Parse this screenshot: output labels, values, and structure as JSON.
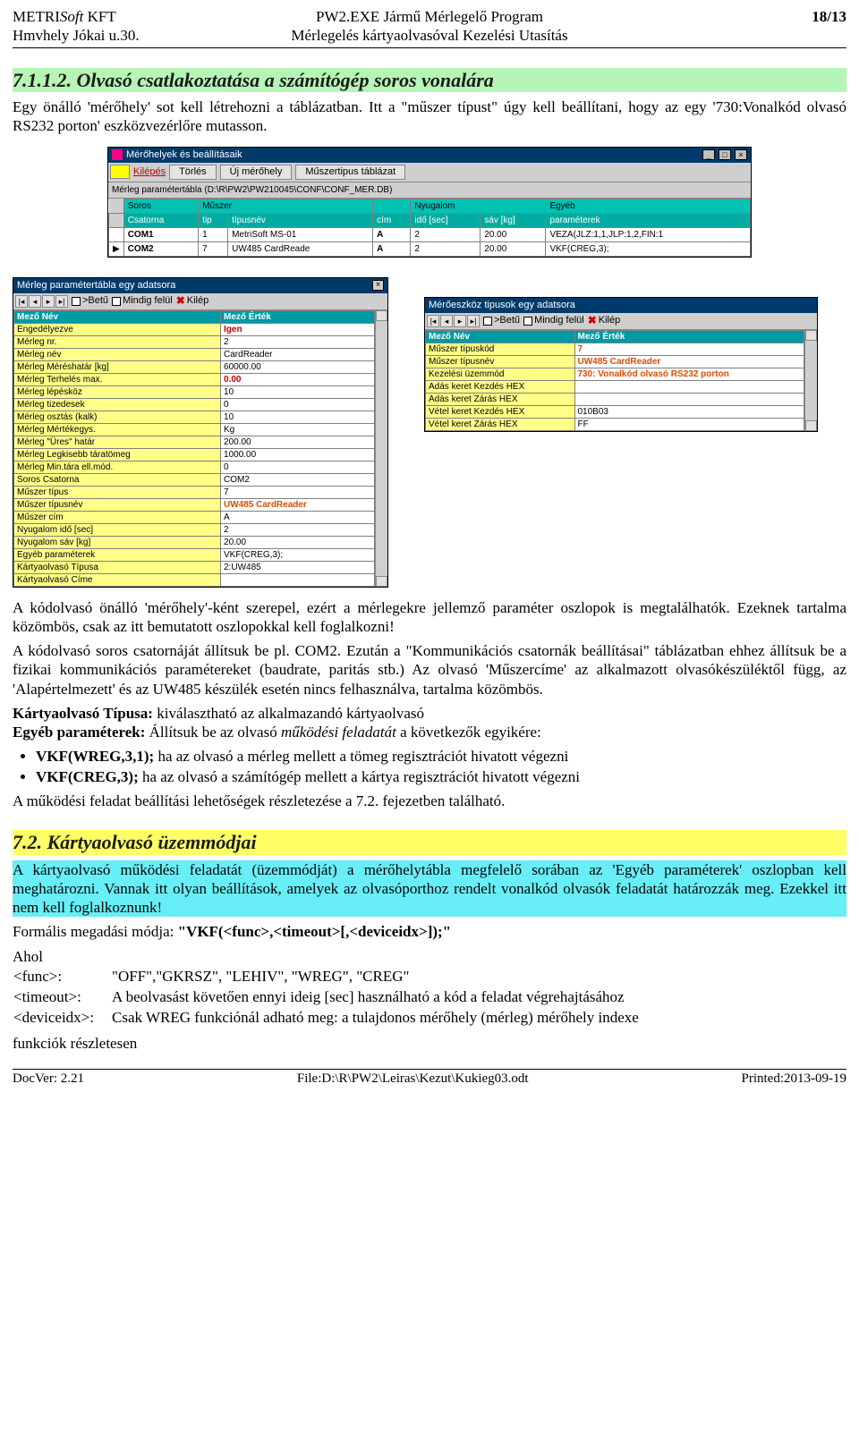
{
  "header": {
    "company1": "METRI",
    "company2": "Soft",
    "company3": " KFT",
    "address": "Hmvhely Jókai u.30.",
    "title1": "PW2.EXE Jármű Mérlegelő Program",
    "title2": "Mérlegelés kártyaolvasóval Kezelési Utasítás",
    "page": "18/13"
  },
  "sec1_title": "7.1.1.2. Olvasó csatlakoztatása a számítógép soros vonalára",
  "p1a": "Egy önálló 'mérőhely' sot kell létrehozni a táblázatban. Itt a \"műszer típust\" úgy kell beállítani, hogy   az egy '730:Vonalkód olvasó RS232 porton' eszközvezérlőre mutasson.",
  "win_merhely": {
    "title": "Mérőhelyek és beállításaik",
    "btn_kilepes": "Kilépés",
    "btn_torles": "Törlés",
    "btn_uj": "Új mérőhely",
    "btn_mtabl": "Műszertipus táblázat",
    "path": "Mérleg paramétertábla (D:\\R\\PW2\\PW210045\\CONF\\CONF_MER.DB)",
    "topcols": [
      "Soros",
      "Műszer",
      "Nyugalom",
      "Egyéb"
    ],
    "cols": [
      "Csatorna",
      "tip",
      "típusnév",
      "cím",
      "idő [sec]",
      "sáv [kg]",
      "paraméterek"
    ],
    "rows": [
      [
        "",
        "COM1",
        "1",
        "MetriSoft MS-01",
        "A",
        "2",
        "20.00",
        "VEZA(JLZ:1,1,JLP:1,2,FIN:1"
      ],
      [
        "▶",
        "COM2",
        "7",
        "UW485 CardReade",
        "A",
        "2",
        "20.00",
        "VKF(CREG,3);"
      ]
    ]
  },
  "win_param": {
    "title": "Mérleg paramétertábla  egy adatsora",
    "opt_betu": ">Betű",
    "opt_mindig": "Mindig felül",
    "btn_kilep": "Kilép",
    "head_name": "Mező Név",
    "head_val": "Mező Érték",
    "rows": [
      [
        "Engedélyezve",
        "Igen",
        "red"
      ],
      [
        "Mérleg nr.",
        "2",
        ""
      ],
      [
        "Mérleg név",
        "CardReader",
        ""
      ],
      [
        "Mérleg Méréshatár [kg]",
        "60000.00",
        ""
      ],
      [
        "Mérleg Terhelés max.",
        "0.00",
        "red"
      ],
      [
        "Mérleg lépésköz",
        "10",
        ""
      ],
      [
        "Mérleg tizedesek",
        "0",
        ""
      ],
      [
        "Mérleg osztás (kalk)",
        "10",
        ""
      ],
      [
        "Mérleg Mértékegys.",
        "Kg",
        ""
      ],
      [
        "Mérleg \"Üres\" határ",
        "200.00",
        ""
      ],
      [
        "Mérleg Legkisebb táratömeg",
        "1000.00",
        ""
      ],
      [
        "Mérleg Min.tára ell.mód.",
        "0",
        ""
      ],
      [
        "Soros Csatorna",
        "COM2",
        ""
      ],
      [
        "Műszer típus",
        "7",
        ""
      ],
      [
        "Műszer típusnév",
        "UW485 CardReader",
        "org"
      ],
      [
        "Műszer cím",
        "A",
        ""
      ],
      [
        "Nyugalom idő [sec]",
        "2",
        ""
      ],
      [
        "Nyugalom sáv [kg]",
        "20.00",
        ""
      ],
      [
        "Egyéb paraméterek",
        "VKF(CREG,3);",
        ""
      ],
      [
        "Kártyaolvasó Típusa",
        "2:UW485",
        ""
      ],
      [
        "Kártyaolvasó Címe",
        "",
        ""
      ]
    ]
  },
  "win_eszkoz": {
    "title": "Mérőeszköz tipusok  egy adatsora",
    "opt_betu": ">Betű",
    "opt_mindig": "Mindig felül",
    "btn_kilep": "Kilép",
    "head_name": "Mező Név",
    "head_val": "Mező Érték",
    "rows": [
      [
        "Műszer típuskód",
        "7",
        "org"
      ],
      [
        "Műszer típusnév",
        "UW485 CardReader",
        "org"
      ],
      [
        "Kezelési üzemmód",
        "730: Vonalkód olvasó RS232 porton",
        "org"
      ],
      [
        "Adás keret Kezdés HEX",
        "",
        ""
      ],
      [
        "Adás keret Zárás HEX",
        "",
        ""
      ],
      [
        "Vétel keret Kezdés HEX",
        "010B03",
        ""
      ],
      [
        "Vétel keret Zárás HEX",
        "FF",
        ""
      ]
    ]
  },
  "p2": "A kódolvasó önálló 'mérőhely'-ként szerepel, ezért a mérlegekre jellemző paraméter oszlopok is megtalálhatók. Ezeknek tartalma közömbös, csak az itt bemutatott oszlopokkal kell foglalkozni!",
  "p3": "A kódolvasó soros csatornáját állítsuk be pl. COM2. Ezután a \"Kommunikációs csatornák beállításai\" táblázatban ehhez állítsuk be a fizikai kommunikációs paramétereket (baudrate, paritás stb.) Az olvasó 'Műszercíme' az alkalmazott olvasókészüléktől függ, az 'Alapértelmezett' és az UW485 készülék esetén nincs felhasználva, tartalma közömbös.",
  "p4a": "Kártyaolvasó Típusa:",
  "p4b": " kiválasztható az alkalmazandó kártyaolvasó",
  "p5a": "Egyéb paraméterek:",
  "p5b": " Állítsuk be az olvasó ",
  "p5c": "működési feladatát",
  "p5d": " a következők egyikére:",
  "bul1a": "VKF(WREG,3,1);",
  "bul1b": " ha az olvasó a mérleg mellett a tömeg regisztrációt hivatott végezni",
  "bul2a": "VKF(CREG,3);",
  "bul2b": " ha az olvasó a számítógép mellett a kártya regisztrációt hivatott végezni",
  "p6": "A működési feladat beállítási lehetőségek részletezése a 7.2. fejezetben található.",
  "sec2_title": "7.2. Kártyaolvasó üzemmódjai",
  "p7": "A kártyaolvasó működési feladatát (üzemmódját) a mérőhelytábla megfelelő sorában az 'Egyéb paraméterek' oszlopban kell meghatározni. Vannak itt olyan beállítások, amelyek az olvasóporthoz rendelt vonalkód olvasók feladatát határozzák meg. Ezekkel itt nem kell foglalkoznunk!",
  "p8a": "Formális megadási módja:  ",
  "p8b": "\"VKF(<func>,<timeout>[,<deviceidx>]);\"",
  "p9": "Ahol",
  "t_func_l": "<func>:",
  "t_func_v": "\"OFF\",\"GKRSZ\", \"LEHIV\", \"WREG\", \"CREG\"",
  "t_to_l": "<timeout>:",
  "t_to_v": "A beolvasást követően ennyi ideig [sec] használható a kód a feladat végrehajtásához",
  "t_dev_l": "<deviceidx>:",
  "t_dev_v": "Csak WREG funkciónál adható meg: a tulajdonos mérőhely (mérleg) mérőhely indexe",
  "p10": "funkciók részletesen",
  "footer": {
    "ver": "DocVer: 2.21",
    "file": "File:D:\\R\\PW2\\Leiras\\Kezut\\Kukieg03.odt",
    "date": "Printed:2013-09-19"
  }
}
